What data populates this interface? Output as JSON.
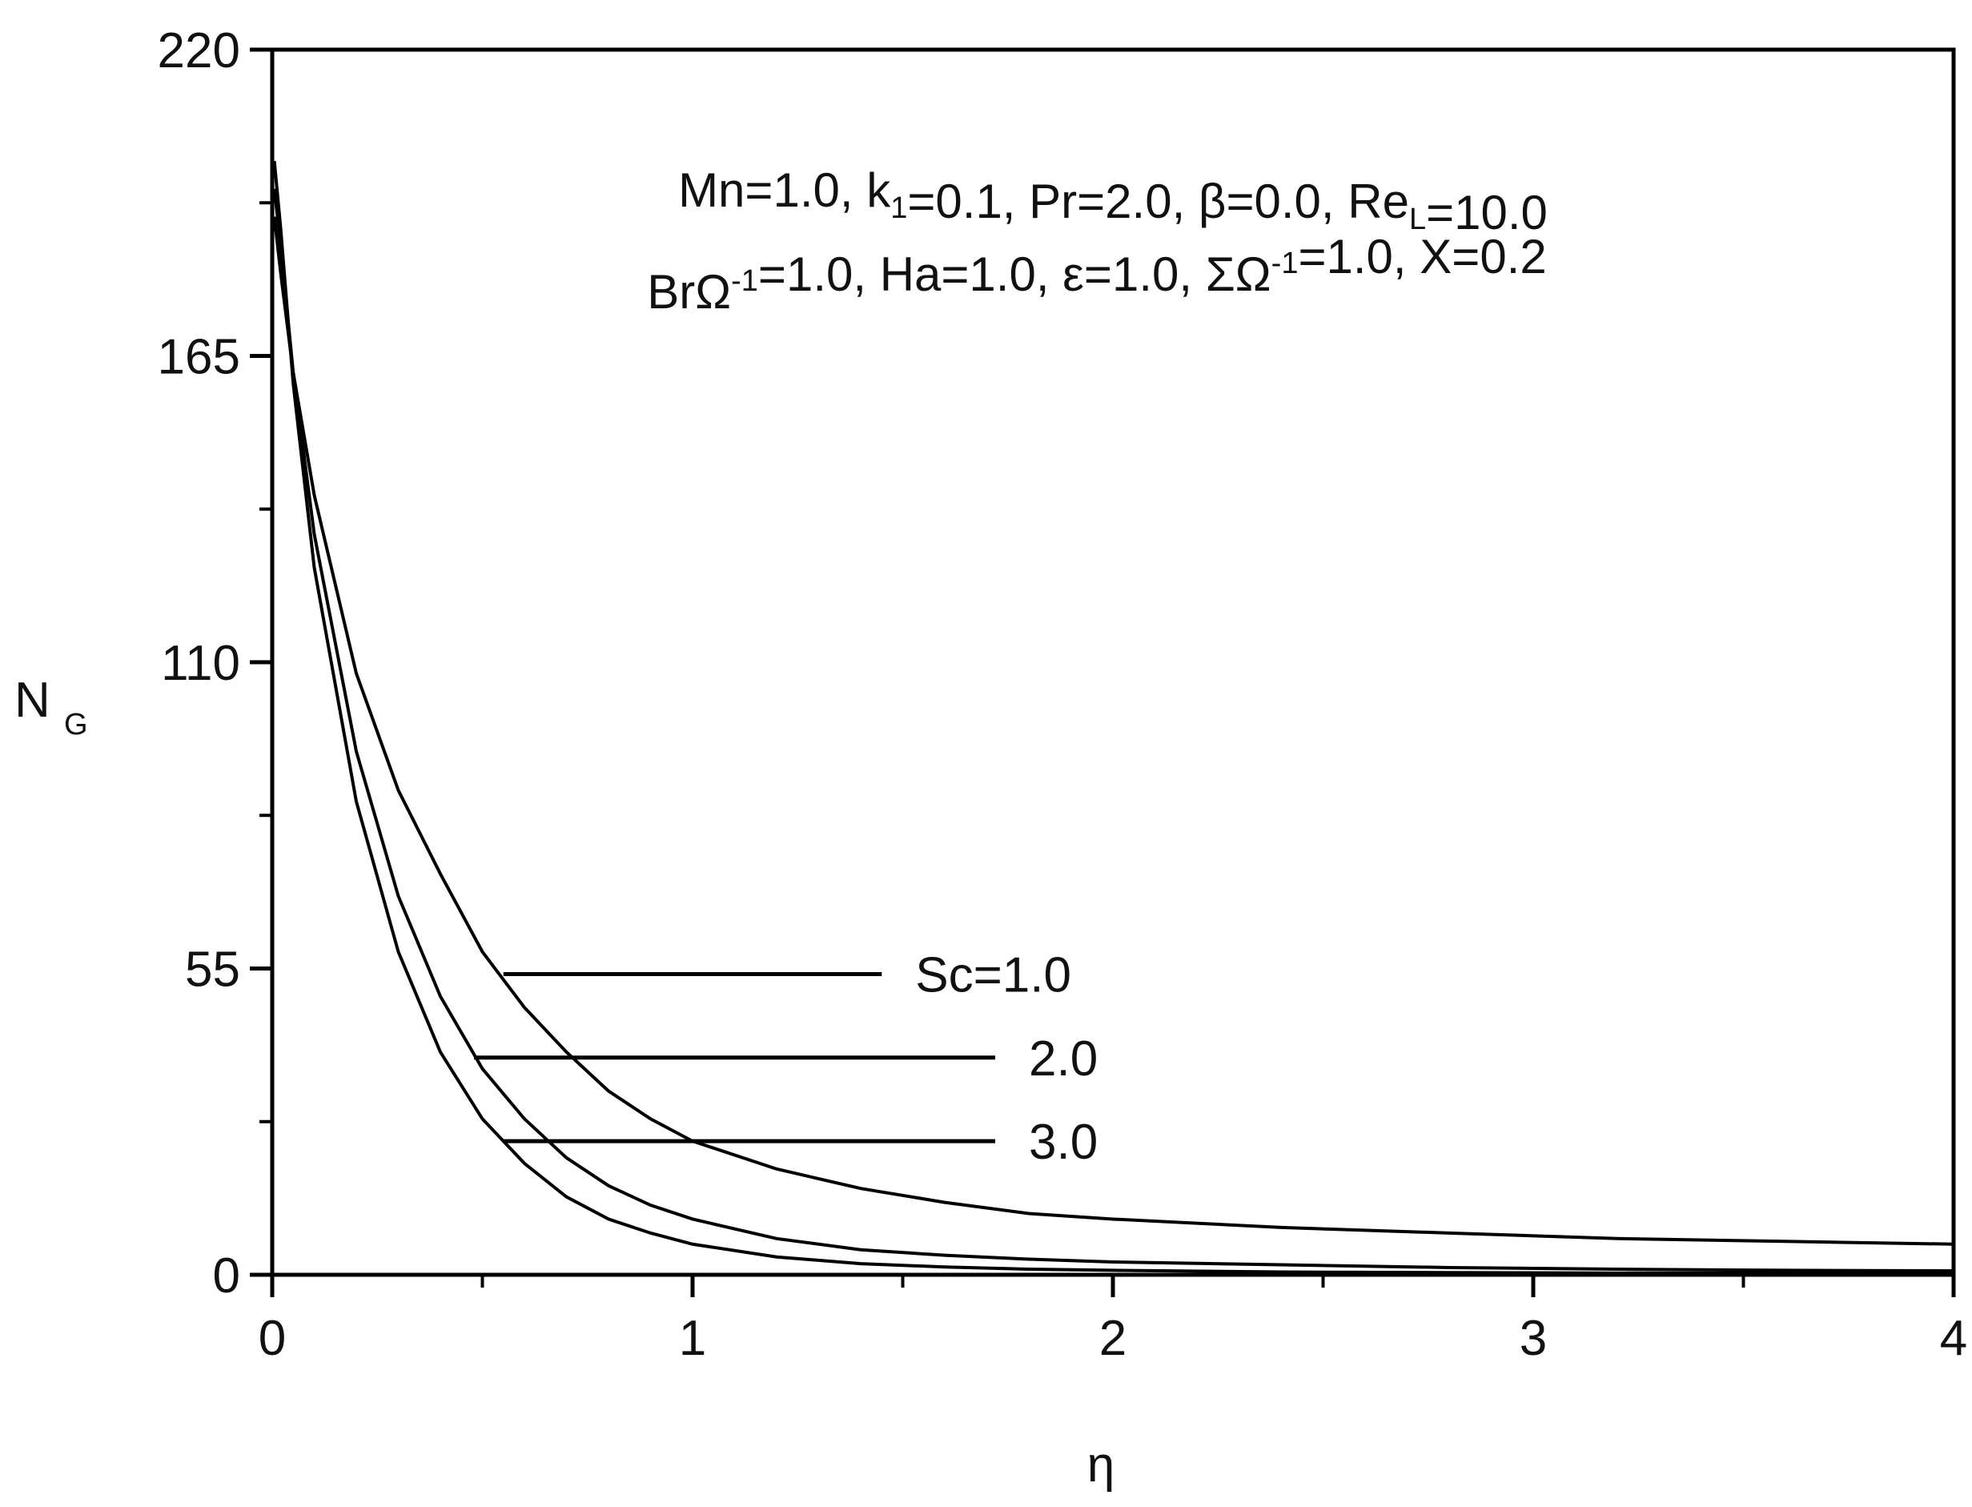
{
  "chart_data": {
    "type": "line",
    "title": "",
    "xlabel": "η",
    "ylabel": {
      "main": "N",
      "sub": "G"
    },
    "xlim": [
      0,
      4
    ],
    "ylim": [
      0,
      220
    ],
    "x_ticks": [
      "0",
      "1",
      "2",
      "3",
      "4"
    ],
    "y_ticks": [
      "0",
      "55",
      "110",
      "165",
      "220"
    ],
    "grid": false,
    "legend": "inline leader labels",
    "annotations": {
      "line1": [
        {
          "t": "Mn=1.0, k"
        },
        {
          "t": "1",
          "sub": true
        },
        {
          "t": "=0.1, Pr=2.0, β=0.0, Re"
        },
        {
          "t": "L",
          "sub": true
        },
        {
          "t": "=10.0"
        }
      ],
      "line2": [
        {
          "t": "BrΩ"
        },
        {
          "t": "-1",
          "sup": true
        },
        {
          "t": "=1.0, Ha=1.0, ε=1.0, ΣΩ"
        },
        {
          "t": "-1",
          "sup": true
        },
        {
          "t": "=1.0, X=0.2"
        }
      ]
    },
    "series": [
      {
        "name": "Sc=1.0",
        "label_text": "Sc=1.0",
        "leader_from": [
          0.55,
          54
        ],
        "leader_to_x": 1.45,
        "x": [
          0.005,
          0.02,
          0.05,
          0.1,
          0.2,
          0.3,
          0.4,
          0.5,
          0.6,
          0.7,
          0.8,
          0.9,
          1.0,
          1.2,
          1.4,
          1.6,
          1.8,
          2.0,
          2.4,
          2.8,
          3.2,
          3.6,
          4.0
        ],
        "y": [
          190,
          180,
          162,
          140,
          108,
          87,
          72,
          58,
          48,
          40,
          33,
          28,
          24,
          19,
          15.5,
          13,
          11,
          10,
          8.5,
          7.5,
          6.5,
          6,
          5.5
        ]
      },
      {
        "name": "2.0",
        "label_text": "2.0",
        "leader_from": [
          0.48,
          39
        ],
        "leader_to_x": 1.72,
        "x": [
          0.005,
          0.02,
          0.05,
          0.1,
          0.2,
          0.3,
          0.4,
          0.5,
          0.6,
          0.7,
          0.8,
          0.9,
          1.0,
          1.2,
          1.4,
          1.6,
          1.8,
          2.0,
          2.4,
          2.8,
          3.2,
          3.6,
          4.0
        ],
        "y": [
          195,
          185,
          162,
          133,
          94,
          68,
          50,
          37,
          28,
          21,
          16,
          12.5,
          10,
          6.5,
          4.5,
          3.5,
          2.8,
          2.3,
          1.8,
          1.3,
          1,
          0.8,
          0.7
        ]
      },
      {
        "name": "3.0",
        "label_text": "3.0",
        "leader_from": [
          0.55,
          24
        ],
        "leader_to_x": 1.72,
        "x": [
          0.005,
          0.02,
          0.05,
          0.1,
          0.2,
          0.3,
          0.4,
          0.5,
          0.6,
          0.7,
          0.8,
          0.9,
          1.0,
          1.2,
          1.4,
          1.6,
          1.8,
          2.0,
          2.4,
          2.8,
          3.2,
          3.6,
          4.0
        ],
        "y": [
          200,
          188,
          160,
          127,
          85,
          58,
          40,
          28,
          20,
          14,
          10,
          7.5,
          5.5,
          3.2,
          2,
          1.4,
          1,
          0.8,
          0.5,
          0.4,
          0.3,
          0.3,
          0.3
        ]
      }
    ]
  }
}
